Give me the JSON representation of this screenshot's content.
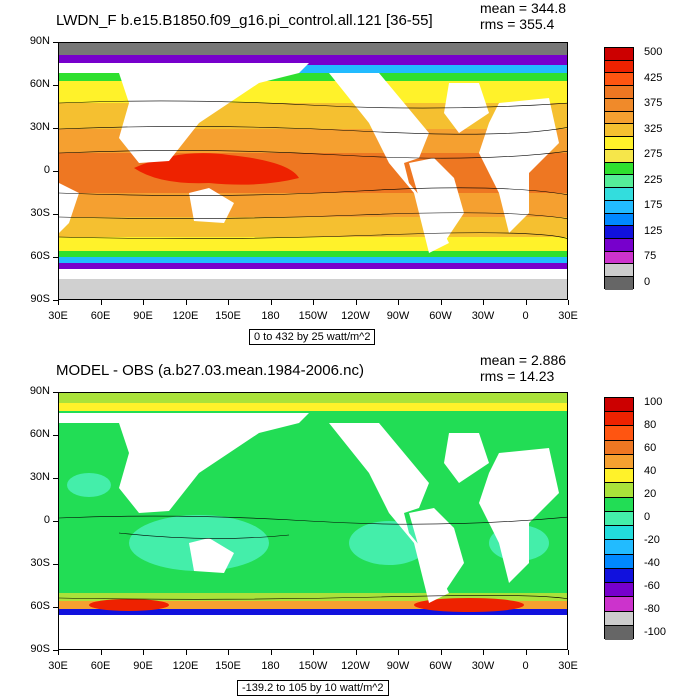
{
  "panels": [
    {
      "id": "top",
      "title": "LWDN_F b.e15.B1850.f09_g16.pi_control.all.121 [36-55]",
      "mean_text": "mean = 344.8",
      "rms_text": "rms = 355.4",
      "caption": "0 to 432 by 25 watt/m^2",
      "colorbar": {
        "colors": [
          "#cc0000",
          "#ee2200",
          "#ff5511",
          "#ee7722",
          "#f08a2a",
          "#f5a030",
          "#f5c030",
          "#fff22a",
          "#f6e64a",
          "#2fe02f",
          "#55ee99",
          "#33dddd",
          "#22bbff",
          "#0088ff",
          "#1111dd",
          "#7700cc",
          "#cc33cc",
          "#cccccc",
          "#666666"
        ],
        "labels": [
          "500",
          "425",
          "375",
          "325",
          "275",
          "225",
          "175",
          "125",
          "75",
          "0"
        ]
      }
    },
    {
      "id": "bottom",
      "title": "MODEL - OBS (a.b27.03.mean.1984-2006.nc)",
      "mean_text": "mean = 2.886",
      "rms_text": "rms = 14.23",
      "caption": "-139.2 to 105 by 10 watt/m^2",
      "colorbar": {
        "colors": [
          "#cc0000",
          "#ee2200",
          "#ff5511",
          "#ee7722",
          "#f5a030",
          "#fff22a",
          "#aae23a",
          "#22dd55",
          "#44eeaa",
          "#22dddd",
          "#22bbff",
          "#0088ff",
          "#1111dd",
          "#7700cc",
          "#cc33cc",
          "#cccccc",
          "#666666"
        ],
        "labels": [
          "100",
          "80",
          "60",
          "40",
          "20",
          "0",
          "-20",
          "-40",
          "-60",
          "-80",
          "-100"
        ]
      }
    }
  ],
  "axes": {
    "lat_labels": [
      "90N",
      "60N",
      "30N",
      "0",
      "30S",
      "60S",
      "90S"
    ],
    "lon_labels": [
      "30E",
      "60E",
      "90E",
      "120E",
      "150E",
      "180",
      "150W",
      "120W",
      "90W",
      "60W",
      "30W",
      "0",
      "30E"
    ]
  },
  "map_data": {
    "projection": "cylindrical-equidistant",
    "lon_range": [
      "30E",
      "30E"
    ],
    "lat_range": [
      "90S",
      "90N"
    ],
    "field_top": "LWDN_F",
    "field_bottom": "MODEL - OBS",
    "units": "watt/m^2"
  }
}
